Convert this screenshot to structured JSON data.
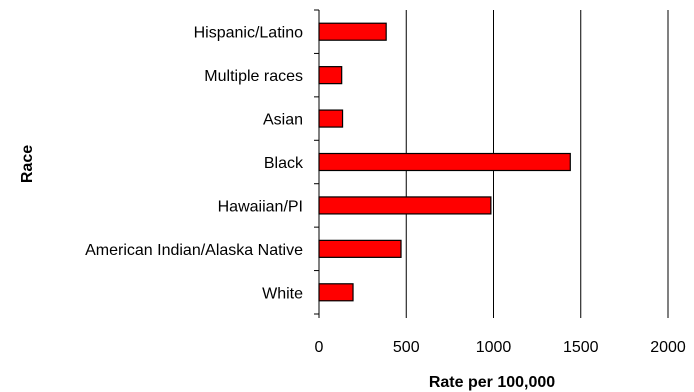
{
  "chart_data": {
    "type": "bar",
    "orientation": "horizontal",
    "categories": [
      "Hispanic/Latino",
      "Multiple races",
      "Asian",
      "Black",
      "Hawaiian/PI",
      "American Indian/Alaska Native",
      "White"
    ],
    "values": [
      385,
      130,
      135,
      1440,
      985,
      470,
      195
    ],
    "xlabel": "Rate per 100,000",
    "ylabel": "Race",
    "xlim": [
      0,
      2000
    ],
    "xticks": [
      0,
      500,
      1000,
      1500,
      2000
    ],
    "x_tick_labels": [
      "0",
      "500",
      "1000",
      "1500",
      "2000"
    ],
    "grid": "vertical",
    "legend": "none",
    "bar_color": "#ff0000"
  }
}
